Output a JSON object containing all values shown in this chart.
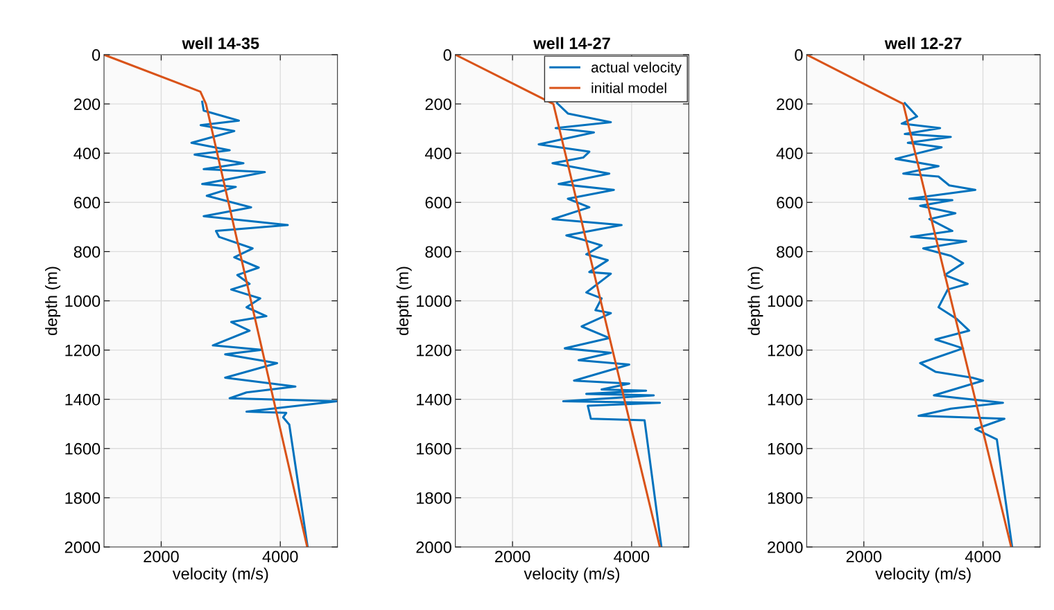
{
  "chart_data": [
    {
      "type": "line",
      "title": "well 14-35",
      "xlabel": "velocity (m/s)",
      "ylabel": "depth (m)",
      "xlim": [
        1040,
        4960
      ],
      "xticks": [
        2000,
        4000
      ],
      "ylim": [
        2000,
        0
      ],
      "yticks": [
        0,
        200,
        400,
        600,
        800,
        1000,
        1200,
        1400,
        1600,
        1800,
        2000
      ],
      "grid": true,
      "legend": false,
      "line_style": "solid",
      "marker": "none",
      "series": [
        {
          "color": "#0072bd",
          "x": [
            2689,
            2714,
            3304,
            2663,
            3227,
            2509,
            3150,
            2561,
            3381,
            2714,
            3740,
            2971,
            2689,
            3253,
            2766,
            3510,
            2714,
            4125,
            2920,
            2971,
            3535,
            3227,
            3638,
            3279,
            3484,
            3176,
            3663,
            3433,
            3766,
            3176,
            3484,
            2868,
            3689,
            3074,
            3946,
            3074,
            4253,
            3433,
            3150,
            4950,
            3433,
            4100,
            4048,
            4151,
            4459
          ],
          "values": [
            191,
            227,
            268,
            286,
            310,
            358,
            388,
            406,
            441,
            465,
            477,
            513,
            525,
            537,
            573,
            620,
            656,
            692,
            716,
            740,
            787,
            823,
            865,
            895,
            931,
            954,
            990,
            1026,
            1062,
            1086,
            1121,
            1181,
            1199,
            1217,
            1253,
            1312,
            1348,
            1372,
            1396,
            1408,
            1450,
            1455,
            1473,
            1503,
            2000
          ]
        },
        {
          "color": "#d95319",
          "x": [
            1040,
            2658,
            2752,
            4452
          ],
          "values": [
            0,
            150,
            200,
            2000
          ]
        }
      ]
    },
    {
      "type": "line",
      "title": "well 14-27",
      "xlabel": "velocity (m/s)",
      "ylabel": "depth (m)",
      "xlim": [
        1040,
        4960
      ],
      "xticks": [
        2000,
        4000
      ],
      "ylim": [
        2000,
        0
      ],
      "yticks": [
        0,
        200,
        400,
        600,
        800,
        1000,
        1200,
        1400,
        1600,
        1800,
        2000
      ],
      "grid": true,
      "legend": "top right",
      "line_style": "solid",
      "marker": "none",
      "series": [
        {
          "name": "actual velocity",
          "color": "#0072bd",
          "x": [
            2749,
            2930,
            3651,
            2724,
            3367,
            2440,
            3290,
            3187,
            2672,
            3625,
            2775,
            3702,
            2930,
            3290,
            2672,
            3831,
            2904,
            3187,
            3496,
            3239,
            3599,
            3290,
            3651,
            3239,
            3496,
            3393,
            3651,
            3161,
            3625,
            2878,
            3651,
            3110,
            3960,
            3033,
            3960,
            3496,
            4243,
            3239,
            4372,
            2852,
            4475,
            3264,
            3316,
            4217,
            4500
          ],
          "values": [
            197,
            239,
            274,
            298,
            316,
            364,
            394,
            418,
            441,
            483,
            525,
            549,
            585,
            620,
            668,
            692,
            734,
            752,
            775,
            811,
            835,
            883,
            890,
            966,
            990,
            1038,
            1050,
            1104,
            1151,
            1193,
            1211,
            1241,
            1259,
            1324,
            1336,
            1360,
            1365,
            1378,
            1384,
            1408,
            1414,
            1426,
            1479,
            1485,
            2000
          ]
        },
        {
          "name": "initial model",
          "color": "#d95319",
          "x": [
            1040,
            2686,
            4474
          ],
          "values": [
            0,
            200,
            2000
          ]
        }
      ]
    },
    {
      "type": "line",
      "title": "well 12-27",
      "xlabel": "velocity (m/s)",
      "ylabel": "depth (m)",
      "xlim": [
        1040,
        4960
      ],
      "xticks": [
        2000,
        4000
      ],
      "ylim": [
        2000,
        0
      ],
      "yticks": [
        0,
        200,
        400,
        600,
        800,
        1000,
        1200,
        1400,
        1600,
        1800,
        2000
      ],
      "grid": true,
      "legend": false,
      "line_style": "solid",
      "marker": "none",
      "series": [
        {
          "color": "#0072bd",
          "x": [
            2688,
            2894,
            2636,
            3280,
            2688,
            3460,
            2739,
            3306,
            2533,
            3254,
            2662,
            3254,
            3434,
            3872,
            2765,
            3486,
            2945,
            3537,
            3100,
            3486,
            2791,
            3718,
            2997,
            3460,
            3666,
            3357,
            3743,
            3409,
            3254,
            3563,
            3769,
            3202,
            3666,
            2945,
            3202,
            3821,
            4001,
            3177,
            4336,
            3460,
            2919,
            4361,
            3872,
            4233,
            4490
          ],
          "values": [
            197,
            251,
            280,
            298,
            322,
            334,
            358,
            376,
            423,
            453,
            483,
            495,
            531,
            549,
            585,
            591,
            614,
            644,
            668,
            716,
            740,
            758,
            787,
            817,
            847,
            895,
            931,
            954,
            1026,
            1074,
            1121,
            1157,
            1193,
            1253,
            1288,
            1312,
            1324,
            1384,
            1414,
            1438,
            1467,
            1479,
            1521,
            1563,
            2000
          ]
        },
        {
          "color": "#d95319",
          "x": [
            1040,
            2662,
            4474
          ],
          "values": [
            0,
            200,
            2000
          ]
        }
      ]
    }
  ]
}
